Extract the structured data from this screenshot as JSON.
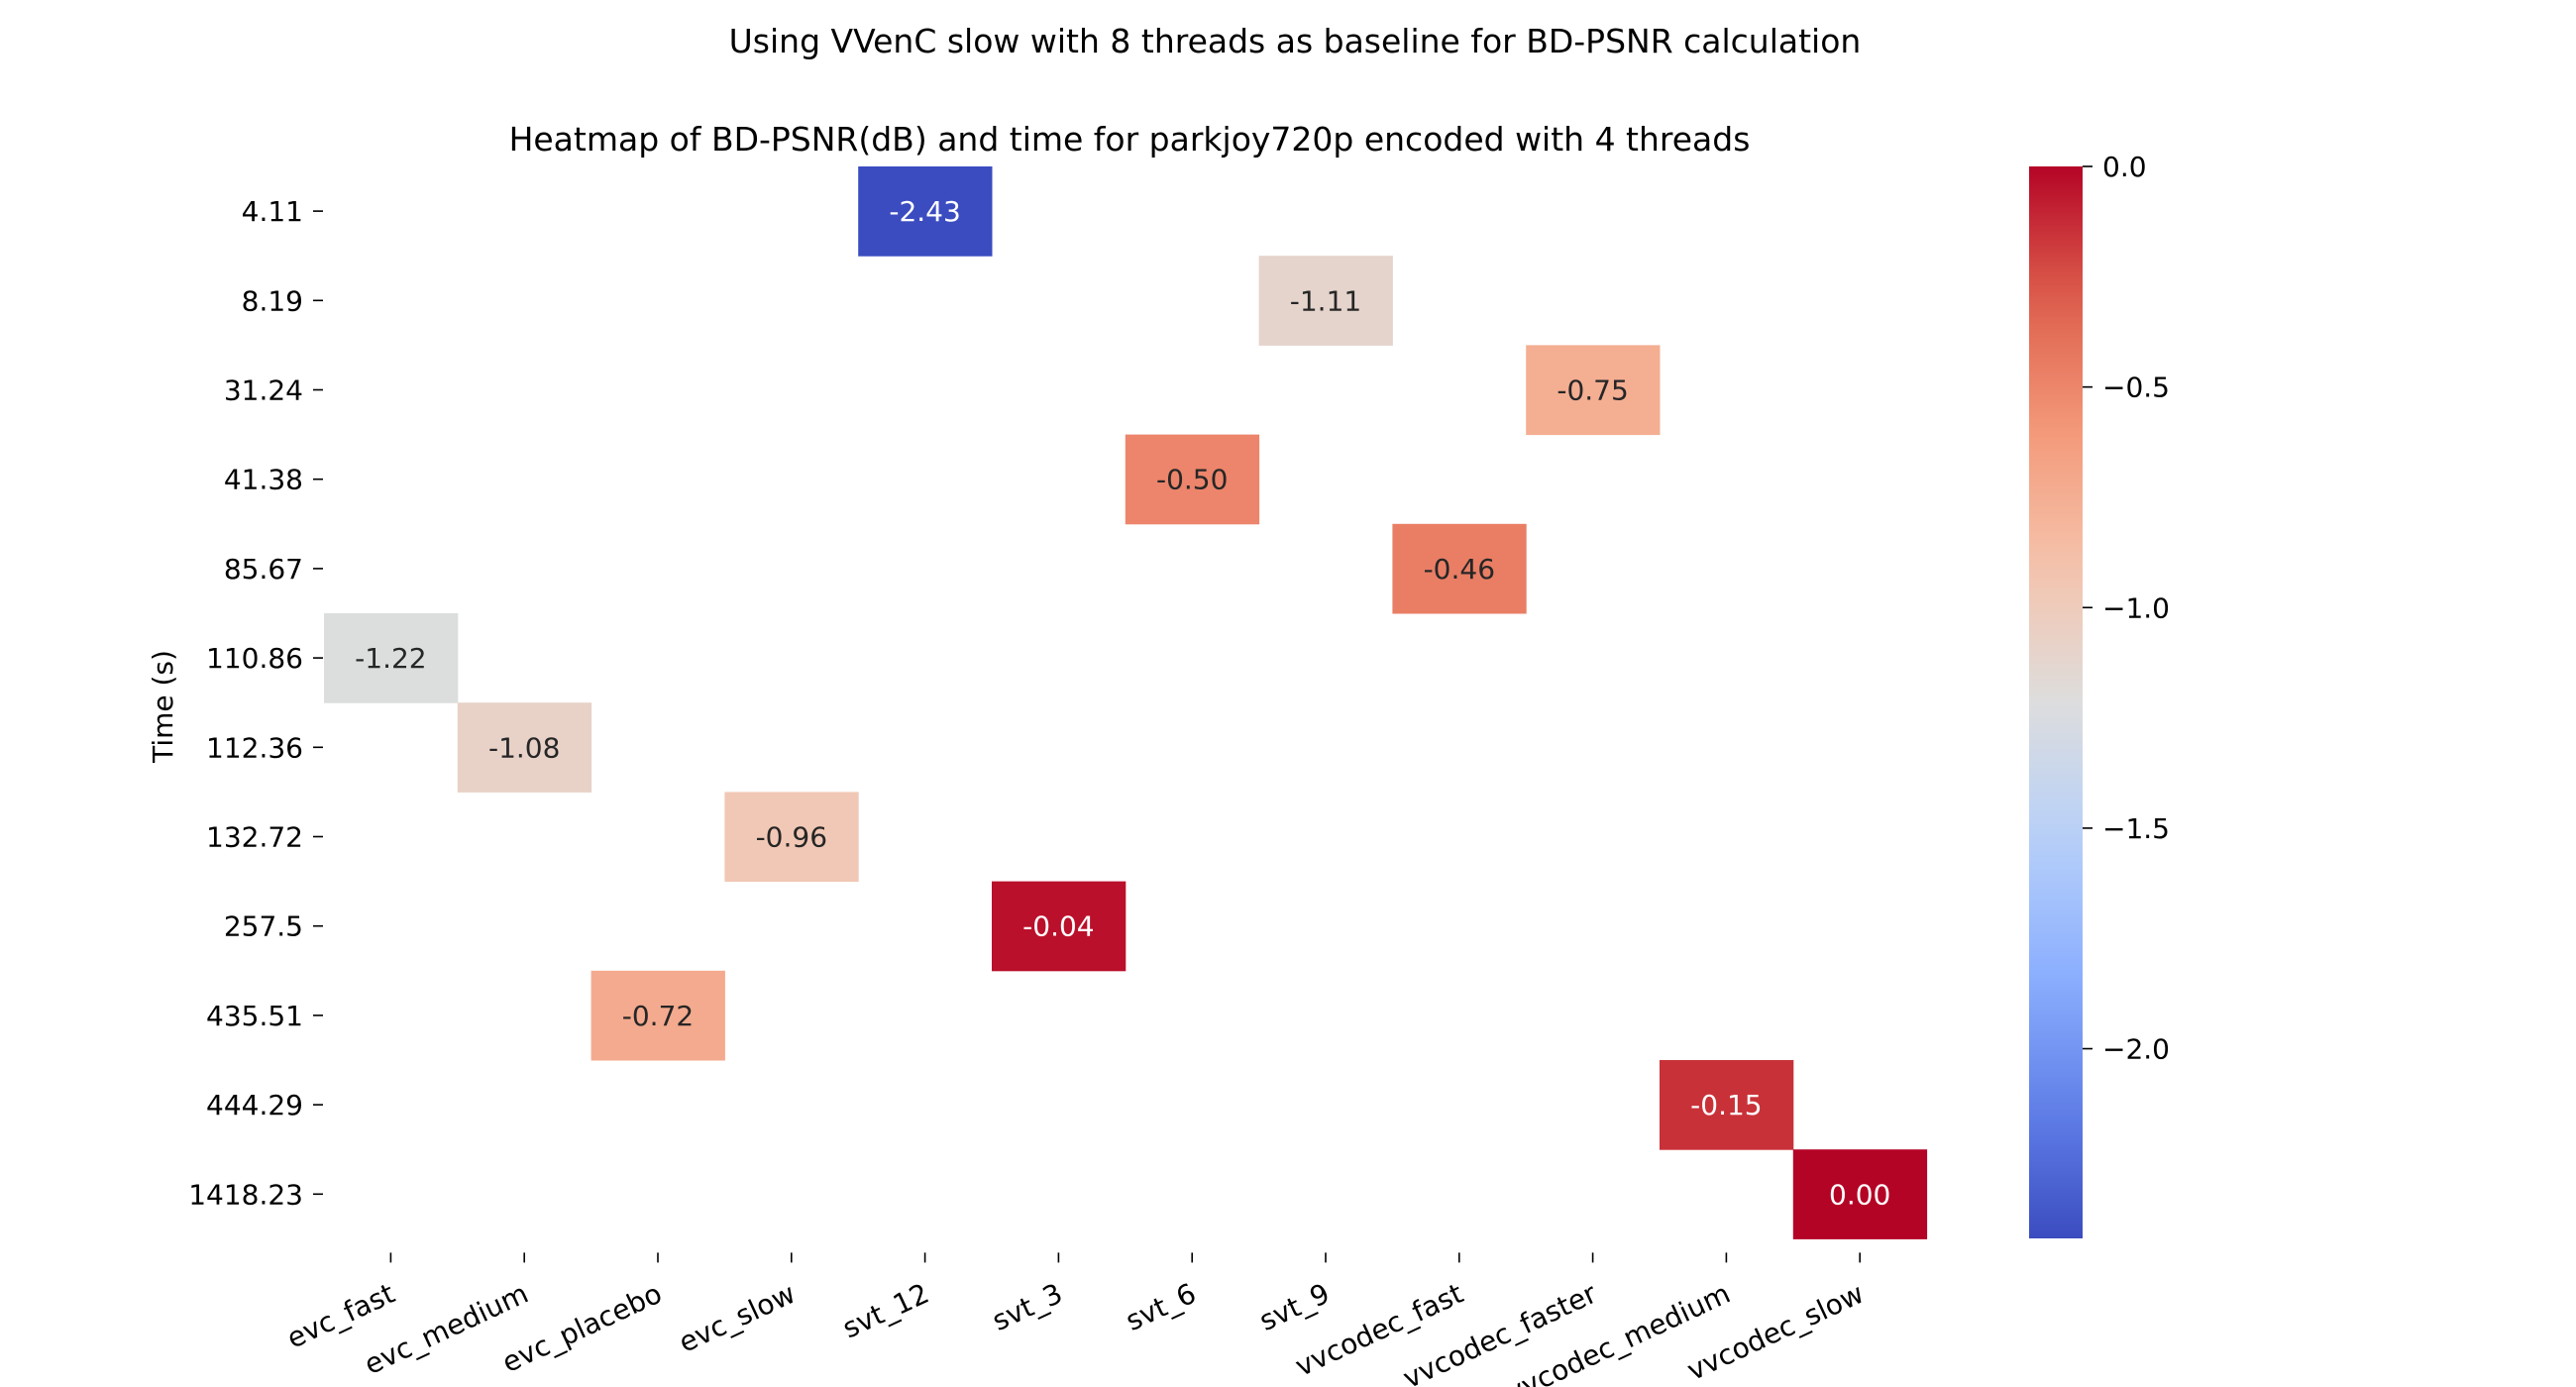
{
  "chart_data": {
    "type": "heatmap",
    "suptitle": "Using VVenC slow with 8 threads as baseline for BD-PSNR calculation",
    "title": "Heatmap of BD-PSNR(dB) and time for parkjoy720p encoded with 4 threads",
    "xlabel": "",
    "ylabel": "Time (s)",
    "x_categories": [
      "evc_fast",
      "evc_medium",
      "evc_placebo",
      "evc_slow",
      "svt_12",
      "svt_3",
      "svt_6",
      "svt_9",
      "vvcodec_fast",
      "vvcodec_faster",
      "vvcodec_medium",
      "vvcodec_slow"
    ],
    "y_categories": [
      "4.11",
      "8.19",
      "31.24",
      "41.38",
      "85.67",
      "110.86",
      "112.36",
      "132.72",
      "257.5",
      "435.51",
      "444.29",
      "1418.23"
    ],
    "cells": [
      {
        "x": "svt_12",
        "y": "4.11",
        "value": -2.43,
        "label": "-2.43"
      },
      {
        "x": "svt_9",
        "y": "8.19",
        "value": -1.11,
        "label": "-1.11"
      },
      {
        "x": "vvcodec_faster",
        "y": "31.24",
        "value": -0.75,
        "label": "-0.75"
      },
      {
        "x": "svt_6",
        "y": "41.38",
        "value": -0.5,
        "label": "-0.50"
      },
      {
        "x": "vvcodec_fast",
        "y": "85.67",
        "value": -0.46,
        "label": "-0.46"
      },
      {
        "x": "evc_fast",
        "y": "110.86",
        "value": -1.22,
        "label": "-1.22"
      },
      {
        "x": "evc_medium",
        "y": "112.36",
        "value": -1.08,
        "label": "-1.08"
      },
      {
        "x": "evc_slow",
        "y": "132.72",
        "value": -0.96,
        "label": "-0.96"
      },
      {
        "x": "svt_3",
        "y": "257.5",
        "value": -0.04,
        "label": "-0.04"
      },
      {
        "x": "evc_placebo",
        "y": "435.51",
        "value": -0.72,
        "label": "-0.72"
      },
      {
        "x": "vvcodec_medium",
        "y": "444.29",
        "value": -0.15,
        "label": "-0.15"
      },
      {
        "x": "vvcodec_slow",
        "y": "1418.23",
        "value": 0.0,
        "label": "0.00"
      }
    ],
    "colormap": "coolwarm",
    "colorbar": {
      "vmin": -2.43,
      "vmax": 0.0,
      "ticks": [
        0.0,
        -0.5,
        -1.0,
        -1.5,
        -2.0
      ],
      "tick_labels": [
        "0.0",
        "−0.5",
        "−1.0",
        "−1.5",
        "−2.0"
      ]
    },
    "grid": false,
    "legend": "colorbar-right"
  }
}
